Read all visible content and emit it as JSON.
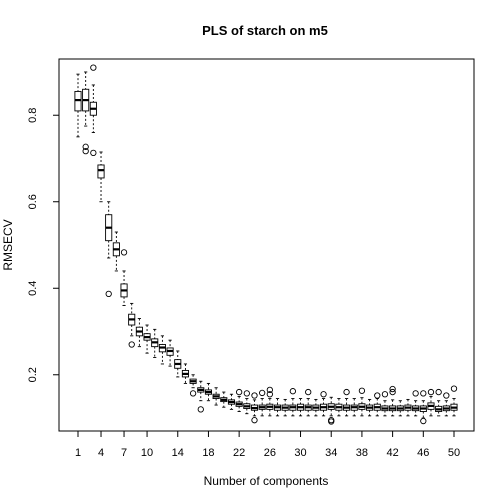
{
  "chart_data": {
    "type": "boxplot",
    "title": "PLS of starch on m5",
    "xlabel": "Number of components",
    "ylabel": "RMSECV",
    "ylim": [
      0.07,
      0.93
    ],
    "y_ticks": [
      0.2,
      0.4,
      0.6,
      0.8
    ],
    "x_tick_labels": [
      "1",
      "4",
      "7",
      "10",
      "14",
      "18",
      "22",
      "26",
      "30",
      "34",
      "38",
      "42",
      "46",
      "50"
    ],
    "grid": false,
    "boxes": [
      {
        "x": 1,
        "lower": 0.75,
        "q1": 0.81,
        "median": 0.835,
        "q3": 0.855,
        "upper": 0.895,
        "outliers": []
      },
      {
        "x": 2,
        "lower": 0.775,
        "q1": 0.81,
        "median": 0.835,
        "q3": 0.86,
        "upper": 0.9,
        "outliers": [
          0.727,
          0.717
        ]
      },
      {
        "x": 3,
        "lower": 0.76,
        "q1": 0.8,
        "median": 0.815,
        "q3": 0.83,
        "upper": 0.87,
        "outliers": [
          0.91,
          0.713
        ]
      },
      {
        "x": 4,
        "lower": 0.6,
        "q1": 0.655,
        "median": 0.673,
        "q3": 0.685,
        "upper": 0.715,
        "outliers": []
      },
      {
        "x": 5,
        "lower": 0.47,
        "q1": 0.51,
        "median": 0.54,
        "q3": 0.57,
        "upper": 0.6,
        "outliers": [
          0.387
        ]
      },
      {
        "x": 6,
        "lower": 0.44,
        "q1": 0.475,
        "median": 0.49,
        "q3": 0.505,
        "upper": 0.53,
        "outliers": []
      },
      {
        "x": 7,
        "lower": 0.36,
        "q1": 0.38,
        "median": 0.395,
        "q3": 0.41,
        "upper": 0.44,
        "outliers": [
          0.483
        ]
      },
      {
        "x": 8,
        "lower": 0.29,
        "q1": 0.315,
        "median": 0.328,
        "q3": 0.34,
        "upper": 0.365,
        "outliers": [
          0.27
        ]
      },
      {
        "x": 9,
        "lower": 0.265,
        "q1": 0.29,
        "median": 0.3,
        "q3": 0.31,
        "upper": 0.33,
        "outliers": []
      },
      {
        "x": 10,
        "lower": 0.25,
        "q1": 0.28,
        "median": 0.287,
        "q3": 0.295,
        "upper": 0.315,
        "outliers": []
      },
      {
        "x": 11,
        "lower": 0.24,
        "q1": 0.265,
        "median": 0.275,
        "q3": 0.283,
        "upper": 0.305,
        "outliers": []
      },
      {
        "x": 12,
        "lower": 0.225,
        "q1": 0.253,
        "median": 0.263,
        "q3": 0.27,
        "upper": 0.29,
        "outliers": []
      },
      {
        "x": 13,
        "lower": 0.22,
        "q1": 0.245,
        "median": 0.255,
        "q3": 0.262,
        "upper": 0.28,
        "outliers": []
      },
      {
        "x": 14,
        "lower": 0.195,
        "q1": 0.215,
        "median": 0.225,
        "q3": 0.235,
        "upper": 0.255,
        "outliers": []
      },
      {
        "x": 15,
        "lower": 0.18,
        "q1": 0.195,
        "median": 0.202,
        "q3": 0.21,
        "upper": 0.225,
        "outliers": []
      },
      {
        "x": 16,
        "lower": 0.17,
        "q1": 0.18,
        "median": 0.185,
        "q3": 0.19,
        "upper": 0.2,
        "outliers": [
          0.157
        ]
      },
      {
        "x": 17,
        "lower": 0.14,
        "q1": 0.16,
        "median": 0.165,
        "q3": 0.17,
        "upper": 0.185,
        "outliers": [
          0.12
        ]
      },
      {
        "x": 18,
        "lower": 0.14,
        "q1": 0.155,
        "median": 0.16,
        "q3": 0.165,
        "upper": 0.18,
        "outliers": []
      },
      {
        "x": 19,
        "lower": 0.13,
        "q1": 0.145,
        "median": 0.15,
        "q3": 0.155,
        "upper": 0.17,
        "outliers": []
      },
      {
        "x": 20,
        "lower": 0.125,
        "q1": 0.138,
        "median": 0.142,
        "q3": 0.147,
        "upper": 0.16,
        "outliers": []
      },
      {
        "x": 21,
        "lower": 0.12,
        "q1": 0.132,
        "median": 0.137,
        "q3": 0.142,
        "upper": 0.155,
        "outliers": []
      },
      {
        "x": 22,
        "lower": 0.115,
        "q1": 0.127,
        "median": 0.132,
        "q3": 0.137,
        "upper": 0.15,
        "outliers": [
          0.16
        ]
      },
      {
        "x": 23,
        "lower": 0.11,
        "q1": 0.122,
        "median": 0.127,
        "q3": 0.133,
        "upper": 0.145,
        "outliers": [
          0.157
        ]
      },
      {
        "x": 24,
        "lower": 0.105,
        "q1": 0.118,
        "median": 0.123,
        "q3": 0.13,
        "upper": 0.142,
        "outliers": [
          0.095,
          0.152
        ]
      },
      {
        "x": 25,
        "lower": 0.105,
        "q1": 0.12,
        "median": 0.125,
        "q3": 0.13,
        "upper": 0.145,
        "outliers": [
          0.158
        ]
      },
      {
        "x": 26,
        "lower": 0.105,
        "q1": 0.12,
        "median": 0.126,
        "q3": 0.132,
        "upper": 0.145,
        "outliers": [
          0.165,
          0.155
        ]
      },
      {
        "x": 27,
        "lower": 0.105,
        "q1": 0.118,
        "median": 0.125,
        "q3": 0.13,
        "upper": 0.145,
        "outliers": []
      },
      {
        "x": 28,
        "lower": 0.105,
        "q1": 0.118,
        "median": 0.124,
        "q3": 0.13,
        "upper": 0.143,
        "outliers": []
      },
      {
        "x": 29,
        "lower": 0.105,
        "q1": 0.118,
        "median": 0.125,
        "q3": 0.13,
        "upper": 0.145,
        "outliers": [
          0.162
        ]
      },
      {
        "x": 30,
        "lower": 0.105,
        "q1": 0.118,
        "median": 0.125,
        "q3": 0.132,
        "upper": 0.145,
        "outliers": []
      },
      {
        "x": 31,
        "lower": 0.105,
        "q1": 0.118,
        "median": 0.125,
        "q3": 0.13,
        "upper": 0.145,
        "outliers": [
          0.16
        ]
      },
      {
        "x": 32,
        "lower": 0.105,
        "q1": 0.118,
        "median": 0.124,
        "q3": 0.13,
        "upper": 0.143,
        "outliers": []
      },
      {
        "x": 33,
        "lower": 0.105,
        "q1": 0.118,
        "median": 0.125,
        "q3": 0.132,
        "upper": 0.145,
        "outliers": [
          0.155
        ]
      },
      {
        "x": 34,
        "lower": 0.105,
        "q1": 0.12,
        "median": 0.126,
        "q3": 0.133,
        "upper": 0.148,
        "outliers": [
          0.092,
          0.095
        ]
      },
      {
        "x": 35,
        "lower": 0.105,
        "q1": 0.118,
        "median": 0.125,
        "q3": 0.132,
        "upper": 0.145,
        "outliers": []
      },
      {
        "x": 36,
        "lower": 0.105,
        "q1": 0.118,
        "median": 0.124,
        "q3": 0.13,
        "upper": 0.145,
        "outliers": [
          0.16
        ]
      },
      {
        "x": 37,
        "lower": 0.105,
        "q1": 0.118,
        "median": 0.125,
        "q3": 0.13,
        "upper": 0.145,
        "outliers": []
      },
      {
        "x": 38,
        "lower": 0.105,
        "q1": 0.12,
        "median": 0.126,
        "q3": 0.133,
        "upper": 0.147,
        "outliers": [
          0.163
        ]
      },
      {
        "x": 39,
        "lower": 0.105,
        "q1": 0.118,
        "median": 0.124,
        "q3": 0.13,
        "upper": 0.143,
        "outliers": []
      },
      {
        "x": 40,
        "lower": 0.105,
        "q1": 0.118,
        "median": 0.125,
        "q3": 0.132,
        "upper": 0.145,
        "outliers": [
          0.152
        ]
      },
      {
        "x": 41,
        "lower": 0.105,
        "q1": 0.117,
        "median": 0.122,
        "q3": 0.128,
        "upper": 0.14,
        "outliers": [
          0.155
        ]
      },
      {
        "x": 42,
        "lower": 0.105,
        "q1": 0.117,
        "median": 0.122,
        "q3": 0.128,
        "upper": 0.142,
        "outliers": [
          0.167,
          0.16
        ]
      },
      {
        "x": 43,
        "lower": 0.105,
        "q1": 0.117,
        "median": 0.122,
        "q3": 0.128,
        "upper": 0.14,
        "outliers": []
      },
      {
        "x": 44,
        "lower": 0.105,
        "q1": 0.118,
        "median": 0.124,
        "q3": 0.13,
        "upper": 0.143,
        "outliers": []
      },
      {
        "x": 45,
        "lower": 0.105,
        "q1": 0.117,
        "median": 0.122,
        "q3": 0.128,
        "upper": 0.14,
        "outliers": [
          0.157
        ]
      },
      {
        "x": 46,
        "lower": 0.1,
        "q1": 0.115,
        "median": 0.122,
        "q3": 0.128,
        "upper": 0.14,
        "outliers": [
          0.093,
          0.157
        ]
      },
      {
        "x": 47,
        "lower": 0.105,
        "q1": 0.12,
        "median": 0.128,
        "q3": 0.135,
        "upper": 0.15,
        "outliers": [
          0.16
        ]
      },
      {
        "x": 48,
        "lower": 0.105,
        "q1": 0.115,
        "median": 0.12,
        "q3": 0.127,
        "upper": 0.14,
        "outliers": [
          0.16
        ]
      },
      {
        "x": 49,
        "lower": 0.105,
        "q1": 0.117,
        "median": 0.122,
        "q3": 0.128,
        "upper": 0.14,
        "outliers": [
          0.152
        ]
      },
      {
        "x": 50,
        "lower": 0.105,
        "q1": 0.118,
        "median": 0.124,
        "q3": 0.132,
        "upper": 0.145,
        "outliers": [
          0.168
        ]
      }
    ]
  }
}
